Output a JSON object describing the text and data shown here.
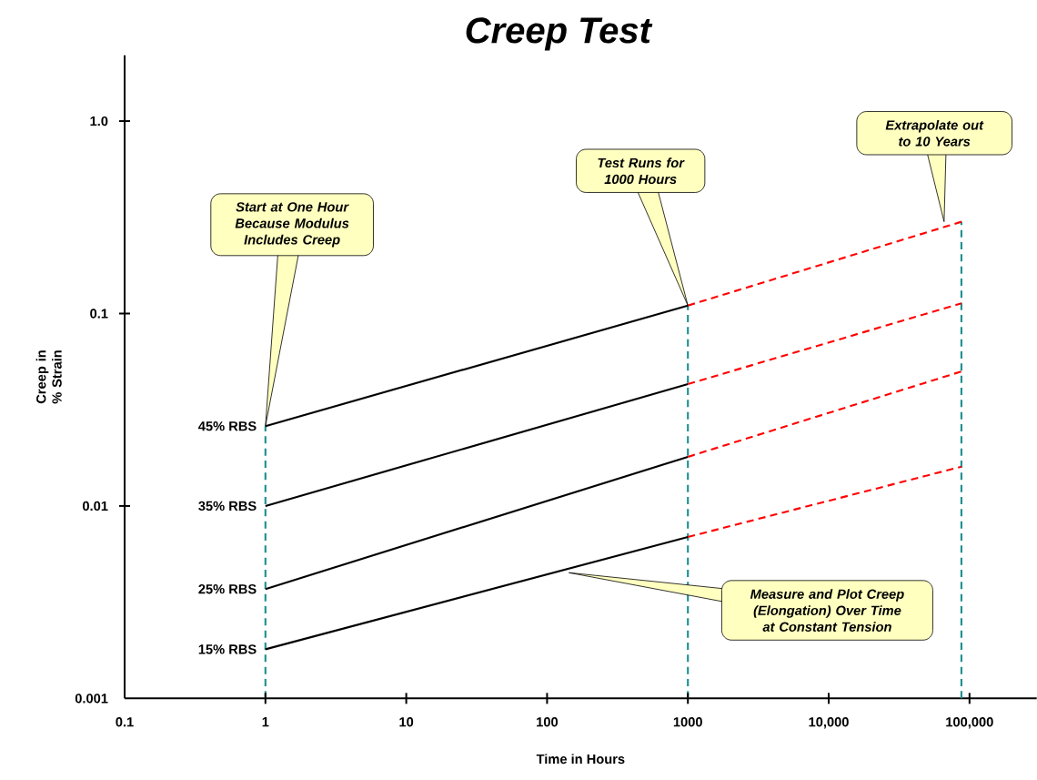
{
  "chart_data": {
    "type": "line",
    "title": "Creep Test",
    "xlabel": "Time in Hours",
    "ylabel": "Creep in % Strain",
    "log": "xy",
    "xlim": [
      0.1,
      300000
    ],
    "ylim": [
      0.001,
      2.2
    ],
    "xticks": [
      0.1,
      1,
      10,
      100,
      1000,
      {
        "value": 10000,
        "label": "10,000"
      },
      {
        "value": 100000,
        "label": "100,000"
      }
    ],
    "yticks": [
      0.001,
      0.01,
      0.1,
      {
        "value": 1,
        "label": "1.0"
      }
    ],
    "grid": false,
    "legend": false,
    "series": [
      {
        "name": "45% RBS",
        "color": "#000000",
        "line_style": "solid",
        "x": [
          1,
          1000
        ],
        "values": [
          0.026,
          0.11
        ]
      },
      {
        "name": "35% RBS",
        "color": "#000000",
        "line_style": "solid",
        "x": [
          1,
          1000
        ],
        "values": [
          0.01,
          0.043
        ]
      },
      {
        "name": "25% RBS",
        "color": "#000000",
        "line_style": "solid",
        "x": [
          1,
          1000
        ],
        "values": [
          0.0037,
          0.018
        ]
      },
      {
        "name": "15% RBS",
        "color": "#000000",
        "line_style": "solid",
        "x": [
          1,
          1000
        ],
        "values": [
          0.0018,
          0.0069
        ]
      },
      {
        "color": "#ff0000",
        "line_style": "dashed",
        "x": [
          1000,
          87600
        ],
        "values": [
          0.11,
          0.3
        ]
      },
      {
        "color": "#ff0000",
        "line_style": "dashed",
        "x": [
          1000,
          87600
        ],
        "values": [
          0.043,
          0.113
        ]
      },
      {
        "color": "#ff0000",
        "line_style": "dashed",
        "x": [
          1000,
          87600
        ],
        "values": [
          0.018,
          0.05
        ]
      },
      {
        "color": "#ff0000",
        "line_style": "dashed",
        "x": [
          1000,
          87600
        ],
        "values": [
          0.0069,
          0.016
        ]
      }
    ],
    "ref_lines": [
      {
        "axis": "x",
        "value": 1,
        "color": "#1f8f8f",
        "line_style": "dashed"
      },
      {
        "axis": "x",
        "value": 1000,
        "color": "#1f8f8f",
        "line_style": "dashed"
      },
      {
        "axis": "x",
        "value": 87600,
        "color": "#1f8f8f",
        "line_style": "dashed"
      }
    ],
    "annotations": [
      {
        "text": "Start at One Hour Because Modulus Includes Creep",
        "x": 1,
        "y": 0.026
      },
      {
        "text": "Test Runs for 1000 Hours",
        "x": 1000,
        "y": 0.11
      },
      {
        "text": "Extrapolate out to 10 Years",
        "x": 66000,
        "y": 0.3
      },
      {
        "text": "Measure and Plot Creep (Elongation) Over Time at Constant Tension",
        "x": 143,
        "y": 0.0045
      }
    ]
  }
}
